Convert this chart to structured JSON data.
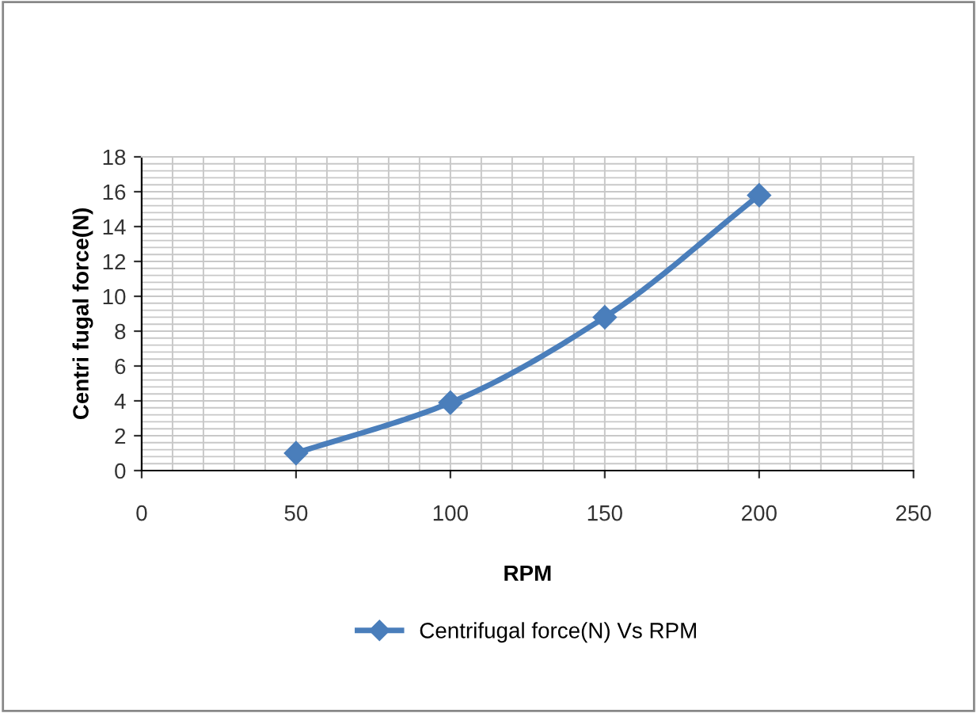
{
  "chart_data": {
    "type": "line",
    "xlabel": "RPM",
    "ylabel": "Centri fugal force(N)",
    "x": [
      50,
      100,
      150,
      200
    ],
    "series": [
      {
        "name": "Centrifugal force(N) Vs RPM",
        "color": "#4a7ebb",
        "values": [
          1.0,
          3.9,
          8.8,
          15.8
        ]
      }
    ],
    "xlim": [
      0,
      250
    ],
    "xticks": [
      0,
      50,
      100,
      150,
      200,
      250
    ],
    "ylim": [
      0,
      18
    ],
    "yticks": [
      0,
      2,
      4,
      6,
      8,
      10,
      12,
      14,
      16,
      18
    ],
    "grid": true,
    "legend": "bottom",
    "marker": "diamond",
    "line_style": "solid"
  }
}
